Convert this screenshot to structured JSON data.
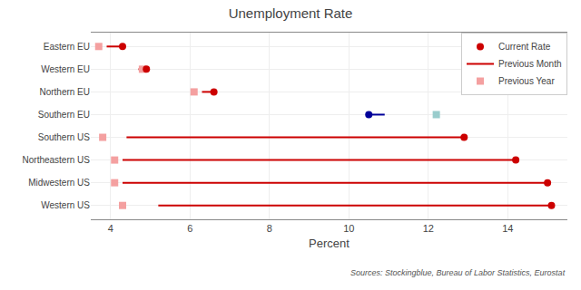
{
  "chart_data": {
    "type": "dumbbell",
    "title": "Unemployment Rate",
    "x_label": "Percent",
    "annotations": [
      "Sources: Stockingblue, Bureau of Labor Statistics, Eurostat"
    ],
    "orientation": "horizontal",
    "categories": [
      "Eastern EU",
      "Western EU",
      "Northern EU",
      "Southern EU",
      "Southern US",
      "Northeastern US",
      "Midwestern US",
      "Western US"
    ],
    "series": [
      {
        "name": "Current Rate",
        "type": "scatter",
        "marker": "circle",
        "colors": [
          "#cc0000",
          "#cc0000",
          "#cc0000",
          "#000099",
          "#cc0000",
          "#cc0000",
          "#cc0000",
          "#cc0000"
        ],
        "values": [
          4.3,
          4.9,
          6.6,
          10.5,
          12.9,
          14.2,
          15.0,
          15.1
        ]
      },
      {
        "name": "Previous Month",
        "type": "line",
        "line_style": "solid",
        "colors": [
          "#cc0000",
          "#cc0000",
          "#cc0000",
          "#000099",
          "#cc0000",
          "#cc0000",
          "#cc0000",
          "#cc0000"
        ],
        "values": [
          3.9,
          4.7,
          6.3,
          10.9,
          4.4,
          4.3,
          4.3,
          5.2
        ]
      },
      {
        "name": "Previous Year",
        "type": "scatter",
        "marker": "square",
        "colors": [
          "#f4a0a0",
          "#f4a0a0",
          "#f4a0a0",
          "#99cccc",
          "#f4a0a0",
          "#f4a0a0",
          "#f4a0a0",
          "#f4a0a0"
        ],
        "values": [
          3.7,
          4.8,
          6.1,
          12.2,
          3.8,
          4.1,
          4.1,
          4.3
        ]
      }
    ],
    "xlim": [
      3.5,
      15.5
    ],
    "xticks": [
      4,
      6,
      8,
      10,
      12,
      14
    ],
    "grid": true,
    "legend": "upper right"
  }
}
